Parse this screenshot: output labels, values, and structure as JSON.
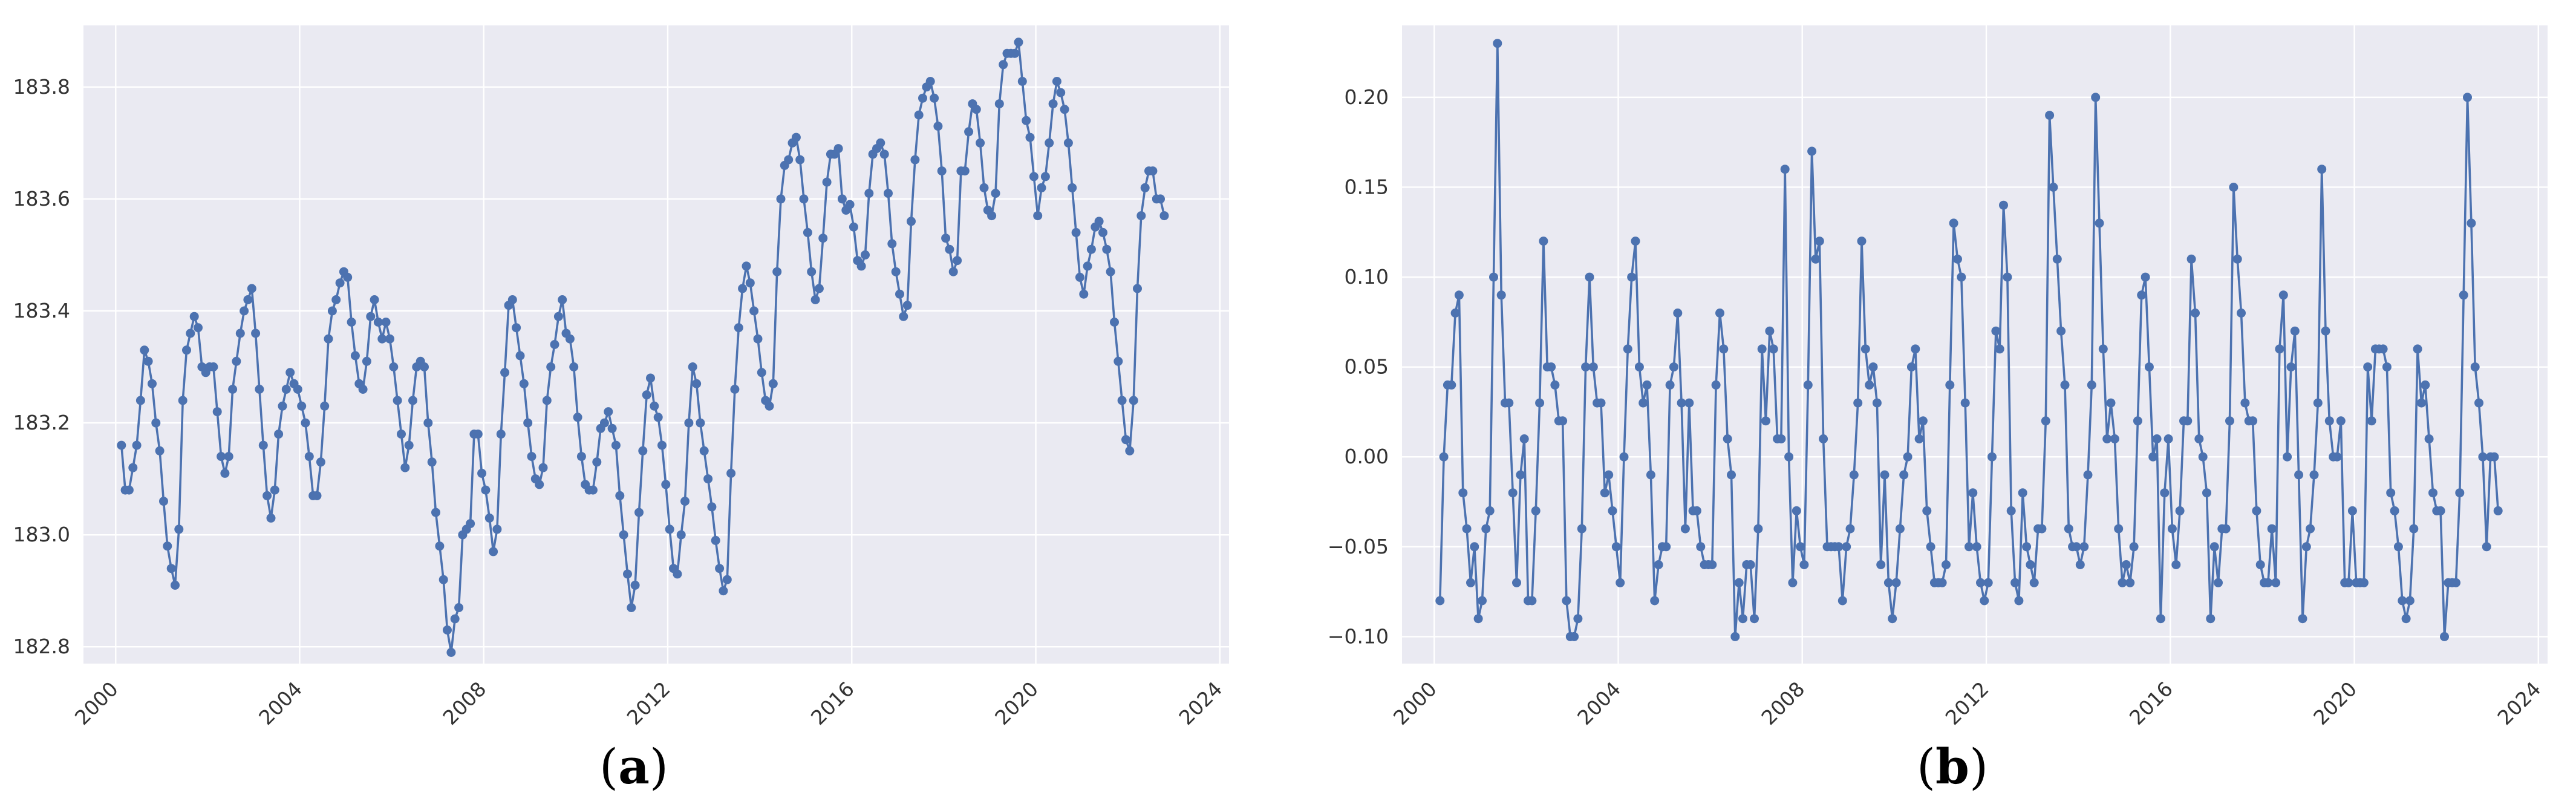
{
  "chart_data": [
    {
      "id": "a",
      "type": "line",
      "caption": "a",
      "xlim": [
        1999.3,
        2024.2
      ],
      "ylim": [
        182.77,
        183.91
      ],
      "yticks": [
        182.8,
        183.0,
        183.2,
        183.4,
        183.6,
        183.8
      ],
      "ytick_labels": [
        "182.8",
        "183.0",
        "183.2",
        "183.4",
        "183.6",
        "183.8"
      ],
      "xticks": [
        2000,
        2004,
        2008,
        2012,
        2016,
        2020,
        2024
      ],
      "xtick_labels": [
        "2000",
        "2004",
        "2008",
        "2012",
        "2016",
        "2020",
        "2024"
      ],
      "grid": true,
      "x_start": 2000.125,
      "x_step": 0.0833333,
      "values": [
        183.16,
        183.08,
        183.08,
        183.12,
        183.16,
        183.24,
        183.33,
        183.31,
        183.27,
        183.2,
        183.15,
        183.06,
        182.98,
        182.94,
        182.91,
        183.01,
        183.24,
        183.33,
        183.36,
        183.39,
        183.37,
        183.3,
        183.29,
        183.3,
        183.3,
        183.22,
        183.14,
        183.11,
        183.14,
        183.26,
        183.31,
        183.36,
        183.4,
        183.42,
        183.44,
        183.36,
        183.26,
        183.16,
        183.07,
        183.03,
        183.08,
        183.18,
        183.23,
        183.26,
        183.29,
        183.27,
        183.26,
        183.23,
        183.2,
        183.14,
        183.07,
        183.07,
        183.13,
        183.23,
        183.35,
        183.4,
        183.42,
        183.45,
        183.47,
        183.46,
        183.38,
        183.32,
        183.27,
        183.26,
        183.31,
        183.39,
        183.42,
        183.38,
        183.35,
        183.38,
        183.35,
        183.3,
        183.24,
        183.18,
        183.12,
        183.16,
        183.24,
        183.3,
        183.31,
        183.3,
        183.2,
        183.13,
        183.04,
        182.98,
        182.92,
        182.83,
        182.79,
        182.85,
        182.87,
        183.0,
        183.01,
        183.02,
        183.18,
        183.18,
        183.11,
        183.08,
        183.03,
        182.97,
        183.01,
        183.18,
        183.29,
        183.41,
        183.42,
        183.37,
        183.32,
        183.27,
        183.2,
        183.14,
        183.1,
        183.09,
        183.12,
        183.24,
        183.3,
        183.34,
        183.39,
        183.42,
        183.36,
        183.35,
        183.3,
        183.21,
        183.14,
        183.09,
        183.08,
        183.08,
        183.13,
        183.19,
        183.2,
        183.22,
        183.19,
        183.16,
        183.07,
        183.0,
        182.93,
        182.87,
        182.91,
        183.04,
        183.15,
        183.25,
        183.28,
        183.23,
        183.21,
        183.16,
        183.09,
        183.01,
        182.94,
        182.93,
        183.0,
        183.06,
        183.2,
        183.3,
        183.27,
        183.2,
        183.15,
        183.1,
        183.05,
        182.99,
        182.94,
        182.9,
        182.92,
        183.11,
        183.26,
        183.37,
        183.44,
        183.48,
        183.45,
        183.4,
        183.35,
        183.29,
        183.24,
        183.23,
        183.27,
        183.47,
        183.6,
        183.66,
        183.67,
        183.7,
        183.71,
        183.67,
        183.6,
        183.54,
        183.47,
        183.42,
        183.44,
        183.53,
        183.63,
        183.68,
        183.68,
        183.69,
        183.6,
        183.58,
        183.59,
        183.55,
        183.49,
        183.48,
        183.5,
        183.61,
        183.68,
        183.69,
        183.7,
        183.68,
        183.61,
        183.52,
        183.47,
        183.43,
        183.39,
        183.41,
        183.56,
        183.67,
        183.75,
        183.78,
        183.8,
        183.81,
        183.78,
        183.73,
        183.65,
        183.53,
        183.51,
        183.47,
        183.49,
        183.65,
        183.65,
        183.72,
        183.77,
        183.76,
        183.7,
        183.62,
        183.58,
        183.57,
        183.61,
        183.77,
        183.84,
        183.86,
        183.86,
        183.86,
        183.88,
        183.81,
        183.74,
        183.71,
        183.64,
        183.57,
        183.62,
        183.64,
        183.7,
        183.77,
        183.81,
        183.79,
        183.76,
        183.7,
        183.62,
        183.54,
        183.46,
        183.43,
        183.48,
        183.51,
        183.55,
        183.56,
        183.54,
        183.51,
        183.47,
        183.38,
        183.31,
        183.24,
        183.17,
        183.15,
        183.24,
        183.44,
        183.57,
        183.62,
        183.65,
        183.65,
        183.6,
        183.6,
        183.57
      ]
    },
    {
      "id": "b",
      "type": "line",
      "caption": "b",
      "xlim": [
        1999.3,
        2024.2
      ],
      "ylim": [
        -0.115,
        0.24
      ],
      "yticks": [
        -0.1,
        -0.05,
        0.0,
        0.05,
        0.1,
        0.15,
        0.2
      ],
      "ytick_labels": [
        "−0.10",
        "−0.05",
        "0.00",
        "0.05",
        "0.10",
        "0.15",
        "0.20"
      ],
      "xticks": [
        2000,
        2004,
        2008,
        2012,
        2016,
        2020,
        2024
      ],
      "xtick_labels": [
        "2000",
        "2004",
        "2008",
        "2012",
        "2016",
        "2020",
        "2024"
      ],
      "grid": true,
      "x_start": 2000.125,
      "x_step": 0.0833333,
      "values": [
        -0.08,
        0.0,
        0.04,
        0.04,
        0.08,
        0.09,
        -0.02,
        -0.04,
        -0.07,
        -0.05,
        -0.09,
        -0.08,
        -0.04,
        -0.03,
        0.1,
        0.23,
        0.09,
        0.03,
        0.03,
        -0.02,
        -0.07,
        -0.01,
        0.01,
        -0.08,
        -0.08,
        -0.03,
        0.03,
        0.12,
        0.05,
        0.05,
        0.04,
        0.02,
        0.02,
        -0.08,
        -0.1,
        -0.1,
        -0.09,
        -0.04,
        0.05,
        0.1,
        0.05,
        0.03,
        0.03,
        -0.02,
        -0.01,
        -0.03,
        -0.05,
        -0.07,
        0.0,
        0.06,
        0.1,
        0.12,
        0.05,
        0.03,
        0.04,
        -0.01,
        -0.08,
        -0.06,
        -0.05,
        -0.05,
        0.04,
        0.05,
        0.08,
        0.03,
        -0.04,
        0.03,
        -0.03,
        -0.03,
        -0.05,
        -0.06,
        -0.06,
        -0.06,
        0.04,
        0.08,
        0.06,
        0.01,
        -0.01,
        -0.1,
        -0.07,
        -0.09,
        -0.06,
        -0.06,
        -0.09,
        -0.04,
        0.06,
        0.02,
        0.07,
        0.06,
        0.01,
        0.01,
        0.16,
        0.0,
        -0.07,
        -0.03,
        -0.05,
        -0.06,
        0.04,
        0.17,
        0.11,
        0.12,
        0.01,
        -0.05,
        -0.05,
        -0.05,
        -0.05,
        -0.08,
        -0.05,
        -0.04,
        -0.01,
        0.03,
        0.12,
        0.06,
        0.04,
        0.05,
        0.03,
        -0.06,
        -0.01,
        -0.07,
        -0.09,
        -0.07,
        -0.04,
        -0.01,
        0.0,
        0.05,
        0.06,
        0.01,
        0.02,
        -0.03,
        -0.05,
        -0.07,
        -0.07,
        -0.07,
        -0.06,
        0.04,
        0.13,
        0.11,
        0.1,
        0.03,
        -0.05,
        -0.02,
        -0.05,
        -0.07,
        -0.08,
        -0.07,
        0.0,
        0.07,
        0.06,
        0.14,
        0.1,
        -0.03,
        -0.07,
        -0.08,
        -0.02,
        -0.05,
        -0.06,
        -0.07,
        -0.04,
        -0.04,
        0.02,
        0.19,
        0.15,
        0.11,
        0.07,
        0.04,
        -0.04,
        -0.05,
        -0.05,
        -0.06,
        -0.05,
        -0.01,
        0.04,
        0.2,
        0.13,
        0.06,
        0.01,
        0.03,
        0.01,
        -0.04,
        -0.07,
        -0.06,
        -0.07,
        -0.05,
        0.02,
        0.09,
        0.1,
        0.05,
        0.0,
        0.01,
        -0.09,
        -0.02,
        0.01,
        -0.04,
        -0.06,
        -0.03,
        0.02,
        0.02,
        0.11,
        0.08,
        0.01,
        0.0,
        -0.02,
        -0.09,
        -0.05,
        -0.07,
        -0.04,
        -0.04,
        0.02,
        0.15,
        0.11,
        0.08,
        0.03,
        0.02,
        0.02,
        -0.03,
        -0.06,
        -0.07,
        -0.07,
        -0.04,
        -0.07,
        0.06,
        0.09,
        0.0,
        0.05,
        0.07,
        -0.01,
        -0.09,
        -0.05,
        -0.04,
        -0.01,
        0.03,
        0.16,
        0.07,
        0.02,
        0.0,
        0.0,
        0.02,
        -0.07,
        -0.07,
        -0.03,
        -0.07,
        -0.07,
        -0.07,
        0.05,
        0.02,
        0.06,
        0.06,
        0.06,
        0.05,
        -0.02,
        -0.03,
        -0.05,
        -0.08,
        -0.09,
        -0.08,
        -0.04,
        0.06,
        0.03,
        0.04,
        0.01,
        -0.02,
        -0.03,
        -0.03,
        -0.1,
        -0.07,
        -0.07,
        -0.07,
        -0.02,
        0.09,
        0.2,
        0.13,
        0.05,
        0.03,
        0.0,
        -0.05,
        0.0,
        0.0,
        -0.03
      ]
    }
  ]
}
